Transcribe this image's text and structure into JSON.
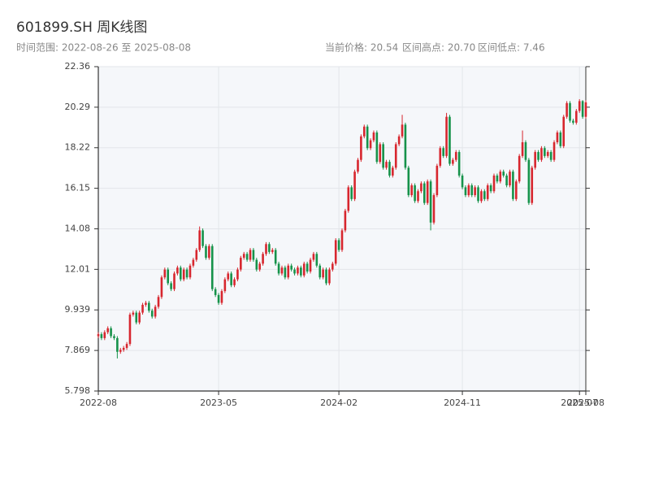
{
  "chart_data": {
    "type": "candlestick",
    "title": "601899.SH 周K线图",
    "subtitle": "时间范围: 2022-08-26 至 2025-08-08",
    "stats": [
      "当前价格: 20.54",
      "区间高点: 20.70",
      "区间低点: 7.46"
    ],
    "up_color": "#d7262e",
    "down_color": "#16924a",
    "grid": true,
    "ylim": [
      5.798,
      22.36
    ],
    "yticks": [
      5.798,
      7.869,
      9.939,
      12.01,
      14.08,
      16.15,
      18.22,
      20.29,
      22.36
    ],
    "xlim": [
      0,
      154
    ],
    "xticks": [
      {
        "value": 0,
        "label": "2022-08"
      },
      {
        "value": 38,
        "label": "2023-05"
      },
      {
        "value": 76,
        "label": "2024-02"
      },
      {
        "value": 115,
        "label": "2024-11"
      },
      {
        "value": 152,
        "label": "2025-07"
      },
      {
        "value": 154,
        "label": "2025-08"
      }
    ],
    "open": [
      8.6,
      8.7,
      8.5,
      8.8,
      9.0,
      8.6,
      8.5,
      7.8,
      7.9,
      8.0,
      8.2,
      9.7,
      9.8,
      9.3,
      9.8,
      10.2,
      10.3,
      9.9,
      9.6,
      10.1,
      10.6,
      11.6,
      12.0,
      11.3,
      11.0,
      11.8,
      12.1,
      11.5,
      12.0,
      11.6,
      12.2,
      12.5,
      13.0,
      14.0,
      13.2,
      12.6,
      13.2,
      11.0,
      10.7,
      10.3,
      10.9,
      11.5,
      11.8,
      11.2,
      11.5,
      12.0,
      12.6,
      12.8,
      12.5,
      13.0,
      12.5,
      12.0,
      12.3,
      12.8,
      13.3,
      12.9,
      13.0,
      12.3,
      11.8,
      12.1,
      11.6,
      12.2,
      12.0,
      11.8,
      12.1,
      11.7,
      12.3,
      11.9,
      12.5,
      12.8,
      12.2,
      11.6,
      12.0,
      11.3,
      12.0,
      12.3,
      13.5,
      13.0,
      14.0,
      15.0,
      16.2,
      15.6,
      17.0,
      17.6,
      18.8,
      19.3,
      18.2,
      18.6,
      19.0,
      17.5,
      18.4,
      17.2,
      17.5,
      16.8,
      17.2,
      18.4,
      18.8,
      19.4,
      17.2,
      15.8,
      16.3,
      15.5,
      16.0,
      16.4,
      15.4,
      16.5,
      14.4,
      15.8,
      17.3,
      18.2,
      17.8,
      19.8,
      17.4,
      17.6,
      18.0,
      16.8,
      16.2,
      15.8,
      16.3,
      15.8,
      16.2,
      15.5,
      16.0,
      15.6,
      16.3,
      16.0,
      16.8,
      16.5,
      17.0,
      16.8,
      16.3,
      17.0,
      15.6,
      16.5,
      17.8,
      18.5,
      17.6,
      15.4,
      17.2,
      18.0,
      17.6,
      18.2,
      17.8,
      18.0,
      17.6,
      18.5,
      19.0,
      18.3,
      19.8,
      20.5,
      19.6,
      19.5,
      20.1,
      20.6,
      19.8
    ],
    "close": [
      8.7,
      8.5,
      8.8,
      9.0,
      8.6,
      8.5,
      7.8,
      7.9,
      8.0,
      8.2,
      9.7,
      9.8,
      9.3,
      9.8,
      10.2,
      10.3,
      9.9,
      9.6,
      10.1,
      10.6,
      11.6,
      12.0,
      11.3,
      11.0,
      11.8,
      12.1,
      11.5,
      12.0,
      11.6,
      12.2,
      12.5,
      13.0,
      14.0,
      13.2,
      12.6,
      13.2,
      11.0,
      10.7,
      10.3,
      10.9,
      11.5,
      11.8,
      11.2,
      11.5,
      12.0,
      12.6,
      12.8,
      12.5,
      13.0,
      12.5,
      12.0,
      12.3,
      12.8,
      13.3,
      12.9,
      13.0,
      12.3,
      11.8,
      12.1,
      11.6,
      12.2,
      12.0,
      11.8,
      12.1,
      11.7,
      12.3,
      11.9,
      12.5,
      12.8,
      12.2,
      11.6,
      12.0,
      11.3,
      12.0,
      12.3,
      13.5,
      13.0,
      14.0,
      15.0,
      16.2,
      15.6,
      17.0,
      17.6,
      18.8,
      19.3,
      18.2,
      18.6,
      19.0,
      17.5,
      18.4,
      17.2,
      17.5,
      16.8,
      17.2,
      18.4,
      18.8,
      19.4,
      17.2,
      15.8,
      16.3,
      15.5,
      16.0,
      16.4,
      15.4,
      16.5,
      14.4,
      15.8,
      17.3,
      18.2,
      17.8,
      19.8,
      17.4,
      17.6,
      18.0,
      16.8,
      16.2,
      15.8,
      16.3,
      15.8,
      16.2,
      15.5,
      16.0,
      15.6,
      16.3,
      16.0,
      16.8,
      16.5,
      17.0,
      16.8,
      16.3,
      17.0,
      15.6,
      16.5,
      17.8,
      18.5,
      17.6,
      15.4,
      17.2,
      18.0,
      17.6,
      18.2,
      17.8,
      18.0,
      17.6,
      18.5,
      19.0,
      18.3,
      19.8,
      20.5,
      19.6,
      19.5,
      20.1,
      20.6,
      19.8,
      20.54
    ],
    "high": [
      8.8,
      8.8,
      8.9,
      9.1,
      9.1,
      8.7,
      8.6,
      8.0,
      8.1,
      8.3,
      9.8,
      9.9,
      9.9,
      9.9,
      10.3,
      10.4,
      10.4,
      10.0,
      10.2,
      10.7,
      11.7,
      12.1,
      12.1,
      11.4,
      11.9,
      12.2,
      12.2,
      12.1,
      12.1,
      12.3,
      12.6,
      13.1,
      14.2,
      14.1,
      13.3,
      13.3,
      13.3,
      11.1,
      10.8,
      11.0,
      11.6,
      11.9,
      11.9,
      11.6,
      12.1,
      12.7,
      12.9,
      12.9,
      13.1,
      13.1,
      12.6,
      12.4,
      12.9,
      13.4,
      13.4,
      13.1,
      13.1,
      12.4,
      12.2,
      12.2,
      12.3,
      12.3,
      12.1,
      12.2,
      12.2,
      12.4,
      12.4,
      12.6,
      12.9,
      12.9,
      12.3,
      12.1,
      12.1,
      12.1,
      12.4,
      13.6,
      13.6,
      14.1,
      15.1,
      16.3,
      16.3,
      17.1,
      17.7,
      18.9,
      19.4,
      19.4,
      18.7,
      19.1,
      19.1,
      18.5,
      18.5,
      17.6,
      17.6,
      17.3,
      18.5,
      18.9,
      19.9,
      19.5,
      17.3,
      16.4,
      16.4,
      16.1,
      16.5,
      16.5,
      16.6,
      16.6,
      15.9,
      17.4,
      18.3,
      18.3,
      20.0,
      19.9,
      17.7,
      18.1,
      18.1,
      16.9,
      16.3,
      16.4,
      16.4,
      16.3,
      16.3,
      16.1,
      16.1,
      16.4,
      16.4,
      16.9,
      16.9,
      17.1,
      17.1,
      16.9,
      17.1,
      17.1,
      16.6,
      17.9,
      19.1,
      18.6,
      17.7,
      17.3,
      18.1,
      18.1,
      18.3,
      18.3,
      18.1,
      18.1,
      18.6,
      19.1,
      19.1,
      19.9,
      20.6,
      20.6,
      19.7,
      20.2,
      20.7,
      20.65,
      20.65
    ],
    "low": [
      8.5,
      8.4,
      8.4,
      8.7,
      8.5,
      8.4,
      7.46,
      7.7,
      7.8,
      7.9,
      8.1,
      9.6,
      9.2,
      9.2,
      9.7,
      10.1,
      9.8,
      9.5,
      9.5,
      10.0,
      10.5,
      11.5,
      11.2,
      10.9,
      10.9,
      11.7,
      11.4,
      11.4,
      11.5,
      11.5,
      12.1,
      12.4,
      12.9,
      13.1,
      12.5,
      12.5,
      10.9,
      10.6,
      10.2,
      10.2,
      10.8,
      11.4,
      11.1,
      11.1,
      11.4,
      11.9,
      12.5,
      12.4,
      12.4,
      12.4,
      11.9,
      11.9,
      12.2,
      12.7,
      12.8,
      12.8,
      12.2,
      11.7,
      11.7,
      11.5,
      11.5,
      11.9,
      11.7,
      11.7,
      11.6,
      11.6,
      11.8,
      11.8,
      12.4,
      12.1,
      11.5,
      11.5,
      11.2,
      11.2,
      11.9,
      12.2,
      12.9,
      12.9,
      13.9,
      14.9,
      15.5,
      15.5,
      16.9,
      17.5,
      18.7,
      18.1,
      18.1,
      18.5,
      17.4,
      17.4,
      17.1,
      17.1,
      16.7,
      16.7,
      17.1,
      18.3,
      18.7,
      17.1,
      15.7,
      15.7,
      15.4,
      15.4,
      15.9,
      15.3,
      15.3,
      14.0,
      14.3,
      15.7,
      17.2,
      17.7,
      17.7,
      17.3,
      17.3,
      17.5,
      16.7,
      16.1,
      15.7,
      15.7,
      15.7,
      15.7,
      15.4,
      15.4,
      15.5,
      15.5,
      15.9,
      15.9,
      16.4,
      16.4,
      16.7,
      16.2,
      16.2,
      15.5,
      15.5,
      16.4,
      17.7,
      17.5,
      15.3,
      15.3,
      17.1,
      17.5,
      17.5,
      17.7,
      17.7,
      17.5,
      17.5,
      18.4,
      18.2,
      18.2,
      19.7,
      19.5,
      19.4,
      19.4,
      20.0,
      19.7,
      19.7
    ]
  }
}
